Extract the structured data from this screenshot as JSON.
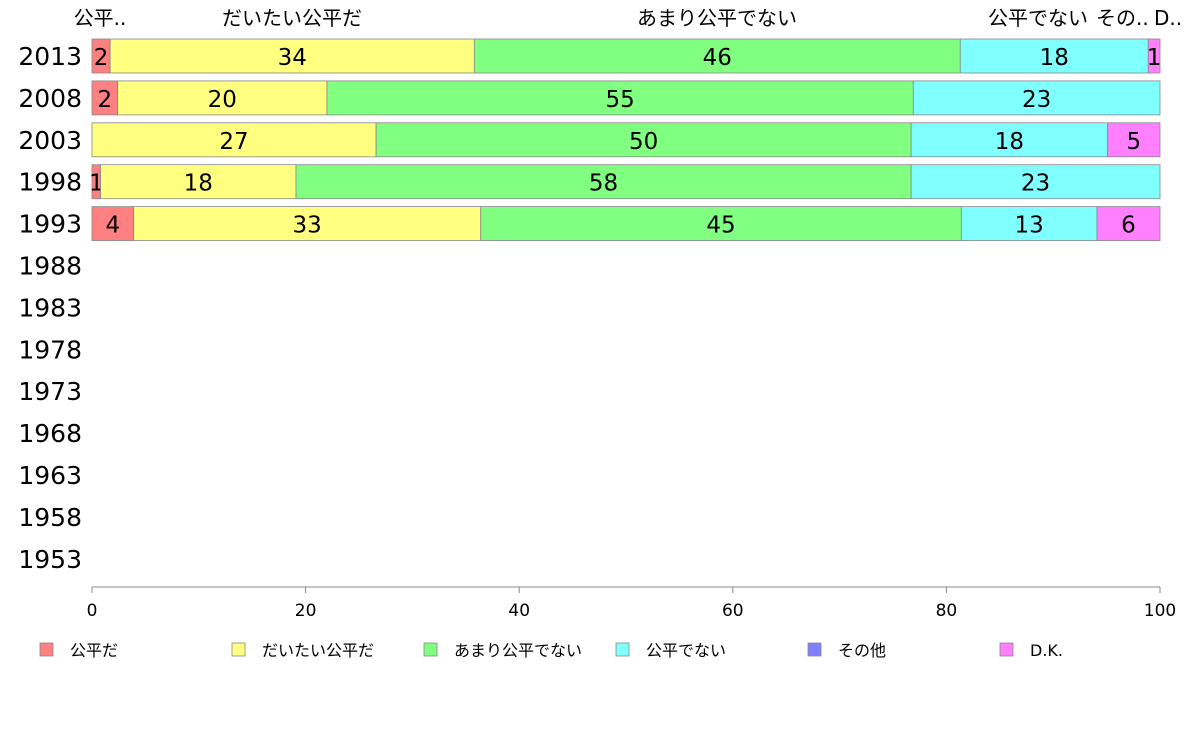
{
  "chart_data": {
    "type": "bar",
    "orientation": "horizontal",
    "stacked": true,
    "title": "",
    "xlabel": "",
    "ylabel": "",
    "xlim": [
      0,
      100
    ],
    "x_ticks": [
      "0",
      "20",
      "40",
      "60",
      "80",
      "100"
    ],
    "categories": [
      "2013",
      "2008",
      "2003",
      "1998",
      "1993",
      "1988",
      "1983",
      "1978",
      "1973",
      "1968",
      "1963",
      "1958",
      "1953"
    ],
    "series": [
      {
        "name": "公平だ",
        "color": "#ff8080",
        "values": [
          1.7,
          2.4,
          0,
          0.8,
          3.9,
          null,
          null,
          null,
          null,
          null,
          null,
          null,
          null
        ]
      },
      {
        "name": "だいたい公平だ",
        "color": "#ffff80",
        "values": [
          34.1,
          19.6,
          26.6,
          18.3,
          32.5,
          null,
          null,
          null,
          null,
          null,
          null,
          null,
          null
        ]
      },
      {
        "name": "あまり公平でない",
        "color": "#80ff80",
        "values": [
          45.5,
          54.9,
          50.1,
          57.6,
          45.0,
          null,
          null,
          null,
          null,
          null,
          null,
          null,
          null
        ]
      },
      {
        "name": "公平でない",
        "color": "#80ffff",
        "values": [
          17.6,
          23.1,
          18.4,
          23.3,
          12.7,
          null,
          null,
          null,
          null,
          null,
          null,
          null,
          null
        ]
      },
      {
        "name": "その他",
        "color": "#8080ff",
        "values": [
          0,
          0,
          0,
          0,
          0,
          null,
          null,
          null,
          null,
          null,
          null,
          null,
          null
        ]
      },
      {
        "name": "D.K.",
        "color": "#ff80ff",
        "values": [
          1.1,
          0,
          4.9,
          0,
          5.9,
          null,
          null,
          null,
          null,
          null,
          null,
          null,
          null
        ]
      }
    ],
    "top_labels": [
      "公平..",
      "だいたい公平だ",
      "あまり公平でない",
      "公平でない",
      "その..",
      "D.."
    ],
    "legend_position": "bottom"
  }
}
